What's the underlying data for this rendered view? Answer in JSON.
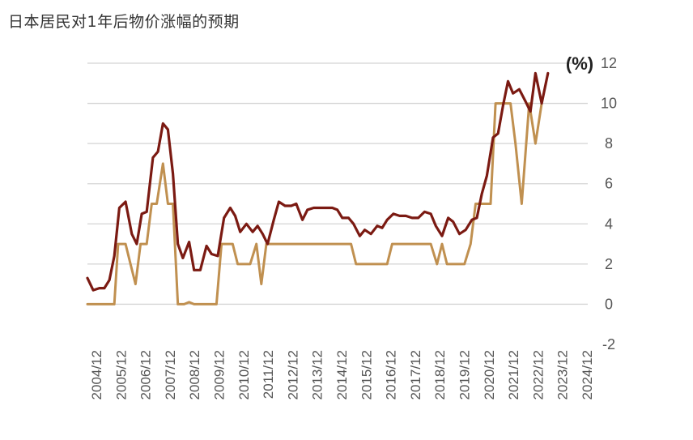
{
  "title": "日本居民对1年后物价涨幅的预期",
  "chart_data": {
    "type": "line",
    "title": "日本居民对1年后物价涨幅的预期",
    "unit_label": "(%)",
    "ylim": [
      -2,
      12
    ],
    "yticks": [
      "12",
      "10",
      "8",
      "6",
      "4",
      "2",
      "0",
      "-2"
    ],
    "yticks_values": [
      12,
      10,
      8,
      6,
      4,
      2,
      0,
      -2
    ],
    "xlim": [
      2004.92,
      2025.0
    ],
    "xticks": [
      "2004/12",
      "2005/12",
      "2006/12",
      "2007/12",
      "2008/12",
      "2009/12",
      "2010/12",
      "2011/12",
      "2012/12",
      "2013/12",
      "2014/12",
      "2015/12",
      "2016/12",
      "2017/12",
      "2018/12",
      "2019/12",
      "2020/12",
      "2021/12",
      "2022/12",
      "2023/12",
      "2024/12"
    ],
    "grid": true,
    "y_axis_position": "right",
    "series": [
      {
        "color": "#7b1a12",
        "points": [
          [
            2004.92,
            1.3
          ],
          [
            2005.15,
            0.7
          ],
          [
            2005.4,
            0.8
          ],
          [
            2005.6,
            0.8
          ],
          [
            2005.8,
            1.2
          ],
          [
            2006.0,
            2.4
          ],
          [
            2006.2,
            4.8
          ],
          [
            2006.45,
            5.1
          ],
          [
            2006.7,
            3.5
          ],
          [
            2006.9,
            3.0
          ],
          [
            2007.1,
            4.5
          ],
          [
            2007.3,
            4.6
          ],
          [
            2007.55,
            7.3
          ],
          [
            2007.75,
            7.6
          ],
          [
            2007.95,
            9.0
          ],
          [
            2008.15,
            8.7
          ],
          [
            2008.35,
            6.5
          ],
          [
            2008.55,
            3.0
          ],
          [
            2008.75,
            2.3
          ],
          [
            2009.0,
            3.1
          ],
          [
            2009.2,
            1.7
          ],
          [
            2009.45,
            1.7
          ],
          [
            2009.7,
            2.9
          ],
          [
            2009.9,
            2.5
          ],
          [
            2010.15,
            2.4
          ],
          [
            2010.4,
            4.3
          ],
          [
            2010.65,
            4.8
          ],
          [
            2010.85,
            4.4
          ],
          [
            2011.05,
            3.6
          ],
          [
            2011.3,
            4.0
          ],
          [
            2011.55,
            3.6
          ],
          [
            2011.75,
            3.9
          ],
          [
            2011.95,
            3.5
          ],
          [
            2012.15,
            3.0
          ],
          [
            2012.4,
            4.2
          ],
          [
            2012.6,
            5.1
          ],
          [
            2012.85,
            4.9
          ],
          [
            2013.1,
            4.9
          ],
          [
            2013.3,
            5.0
          ],
          [
            2013.55,
            4.2
          ],
          [
            2013.75,
            4.7
          ],
          [
            2014.0,
            4.8
          ],
          [
            2014.25,
            4.8
          ],
          [
            2014.5,
            4.8
          ],
          [
            2014.75,
            4.8
          ],
          [
            2014.95,
            4.7
          ],
          [
            2015.15,
            4.3
          ],
          [
            2015.4,
            4.3
          ],
          [
            2015.6,
            4.0
          ],
          [
            2015.85,
            3.4
          ],
          [
            2016.05,
            3.7
          ],
          [
            2016.3,
            3.5
          ],
          [
            2016.55,
            3.9
          ],
          [
            2016.75,
            3.8
          ],
          [
            2016.95,
            4.2
          ],
          [
            2017.2,
            4.5
          ],
          [
            2017.45,
            4.4
          ],
          [
            2017.7,
            4.4
          ],
          [
            2017.95,
            4.3
          ],
          [
            2018.2,
            4.3
          ],
          [
            2018.45,
            4.6
          ],
          [
            2018.7,
            4.5
          ],
          [
            2018.9,
            3.9
          ],
          [
            2019.15,
            3.4
          ],
          [
            2019.4,
            4.3
          ],
          [
            2019.6,
            4.1
          ],
          [
            2019.85,
            3.5
          ],
          [
            2020.1,
            3.7
          ],
          [
            2020.35,
            4.2
          ],
          [
            2020.55,
            4.3
          ],
          [
            2020.75,
            5.5
          ],
          [
            2020.95,
            6.4
          ],
          [
            2021.2,
            8.3
          ],
          [
            2021.4,
            8.5
          ],
          [
            2021.6,
            9.9
          ],
          [
            2021.8,
            11.1
          ],
          [
            2022.0,
            10.5
          ],
          [
            2022.25,
            10.7
          ],
          [
            2022.5,
            10.1
          ],
          [
            2022.7,
            9.6
          ],
          [
            2022.9,
            11.5
          ],
          [
            2023.15,
            10.0
          ],
          [
            2023.4,
            11.5
          ]
        ]
      },
      {
        "color": "#c09050",
        "points": [
          [
            2004.92,
            0.0
          ],
          [
            2005.2,
            0.0
          ],
          [
            2005.5,
            0.0
          ],
          [
            2005.8,
            0.0
          ],
          [
            2006.0,
            0.0
          ],
          [
            2006.15,
            3.0
          ],
          [
            2006.45,
            3.0
          ],
          [
            2006.65,
            2.0
          ],
          [
            2006.85,
            1.0
          ],
          [
            2007.05,
            3.0
          ],
          [
            2007.3,
            3.0
          ],
          [
            2007.5,
            5.0
          ],
          [
            2007.7,
            5.0
          ],
          [
            2007.95,
            7.0
          ],
          [
            2008.15,
            5.0
          ],
          [
            2008.35,
            5.0
          ],
          [
            2008.55,
            0.0
          ],
          [
            2008.8,
            0.0
          ],
          [
            2009.0,
            0.1
          ],
          [
            2009.2,
            0.0
          ],
          [
            2009.5,
            0.0
          ],
          [
            2009.8,
            0.0
          ],
          [
            2010.1,
            0.0
          ],
          [
            2010.3,
            3.0
          ],
          [
            2010.55,
            3.0
          ],
          [
            2010.75,
            3.0
          ],
          [
            2010.95,
            2.0
          ],
          [
            2011.2,
            2.0
          ],
          [
            2011.45,
            2.0
          ],
          [
            2011.7,
            3.0
          ],
          [
            2011.9,
            1.0
          ],
          [
            2012.1,
            3.0
          ],
          [
            2012.5,
            3.0
          ],
          [
            2013.0,
            3.0
          ],
          [
            2013.5,
            3.0
          ],
          [
            2014.0,
            3.0
          ],
          [
            2014.5,
            3.0
          ],
          [
            2015.0,
            3.0
          ],
          [
            2015.5,
            3.0
          ],
          [
            2015.7,
            2.0
          ],
          [
            2016.2,
            2.0
          ],
          [
            2016.6,
            2.0
          ],
          [
            2016.95,
            2.0
          ],
          [
            2017.15,
            3.0
          ],
          [
            2017.6,
            3.0
          ],
          [
            2018.0,
            3.0
          ],
          [
            2018.4,
            3.0
          ],
          [
            2018.7,
            3.0
          ],
          [
            2018.95,
            2.0
          ],
          [
            2019.15,
            3.0
          ],
          [
            2019.35,
            2.0
          ],
          [
            2019.7,
            2.0
          ],
          [
            2020.05,
            2.0
          ],
          [
            2020.3,
            3.0
          ],
          [
            2020.5,
            5.0
          ],
          [
            2020.8,
            5.0
          ],
          [
            2021.1,
            5.0
          ],
          [
            2021.3,
            10.0
          ],
          [
            2021.6,
            10.0
          ],
          [
            2021.9,
            10.0
          ],
          [
            2022.1,
            8.0
          ],
          [
            2022.35,
            5.0
          ],
          [
            2022.65,
            10.0
          ],
          [
            2022.9,
            8.0
          ],
          [
            2023.15,
            10.0
          ]
        ]
      }
    ]
  }
}
